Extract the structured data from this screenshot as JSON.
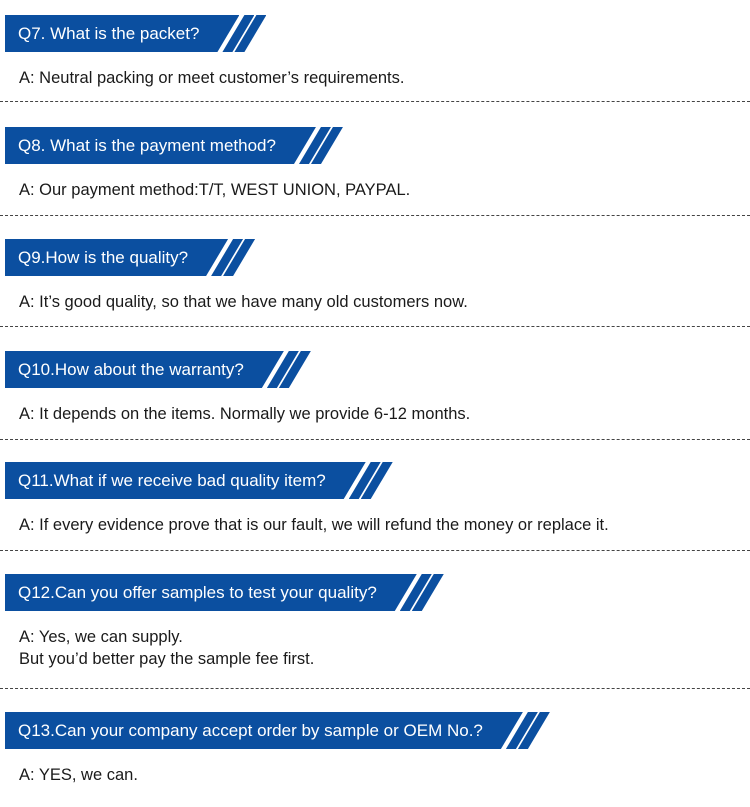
{
  "accent_color": "#0b4fa0",
  "faqs": [
    {
      "question": "Q7. What is the packet?",
      "answer": [
        "A: Neutral packing or meet customer’s requirements."
      ]
    },
    {
      "question": "Q8. What is the payment method?",
      "answer": [
        "A: Our payment method:T/T, WEST UNION, PAYPAL."
      ]
    },
    {
      "question": "Q9.How is the quality?",
      "answer": [
        "A: It’s good quality, so that we have many old customers now."
      ]
    },
    {
      "question": "Q10.How about the warranty?",
      "answer": [
        "A: It depends on the items. Normally we provide 6-12 months."
      ]
    },
    {
      "question": "Q11.What if we receive bad quality item?",
      "answer": [
        "A: If every evidence prove that is our fault, we will refund the money or replace it."
      ]
    },
    {
      "question": "Q12.Can you offer samples to test your quality?",
      "answer": [
        "A: Yes, we can supply.",
        "But you’d better pay the sample fee first."
      ]
    },
    {
      "question": "Q13.Can your company accept order by sample or OEM No.?",
      "answer": [
        "A: YES, we can."
      ]
    }
  ]
}
